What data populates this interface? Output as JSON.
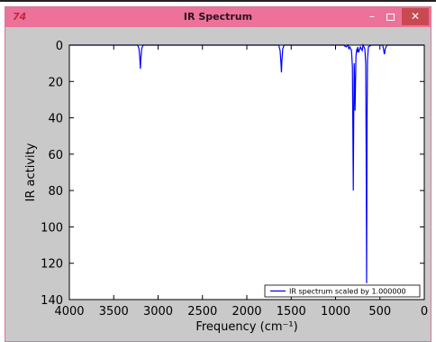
{
  "window": {
    "title": "IR Spectrum",
    "app_icon_glyph": "74",
    "minimize_glyph": "–",
    "close_glyph": "✕",
    "titlebar_color": "#ec7299",
    "close_color": "#c84a50"
  },
  "chart_data": {
    "type": "line",
    "title": "",
    "xlabel": "Frequency (cm⁻¹)",
    "ylabel": "IR activity",
    "xlim": [
      4000,
      0
    ],
    "ylim": [
      140,
      0
    ],
    "x_ticks": [
      4000,
      3500,
      3000,
      2500,
      2000,
      1500,
      1000,
      500,
      0
    ],
    "y_ticks": [
      0,
      20,
      40,
      60,
      80,
      100,
      120,
      140
    ],
    "grid": false,
    "legend_position": "lower-right",
    "series": [
      {
        "name": "IR spectrum scaled by 1.000000",
        "color": "#0000ff",
        "x": [
          4000,
          3230,
          3215,
          3205,
          3200,
          3195,
          3185,
          3170,
          1640,
          1625,
          1615,
          1610,
          1605,
          1595,
          1580,
          910,
          880,
          860,
          850,
          840,
          830,
          820,
          810,
          800,
          795,
          790,
          785,
          780,
          770,
          760,
          755,
          750,
          740,
          720,
          700,
          690,
          670,
          660,
          655,
          650,
          645,
          640,
          630,
          600,
          470,
          460,
          450,
          445,
          440,
          430,
          420,
          0
        ],
        "y": [
          0,
          0,
          2,
          8,
          13,
          8,
          2,
          0,
          0,
          3,
          10,
          15,
          9,
          2,
          0,
          0,
          1,
          0,
          2,
          1,
          2,
          3,
          12,
          80,
          40,
          10,
          20,
          36,
          6,
          2,
          4,
          1,
          4,
          1,
          3,
          0,
          2,
          10,
          60,
          131,
          40,
          8,
          1,
          0,
          0,
          2,
          5,
          4,
          2,
          1,
          0,
          0
        ]
      }
    ]
  }
}
